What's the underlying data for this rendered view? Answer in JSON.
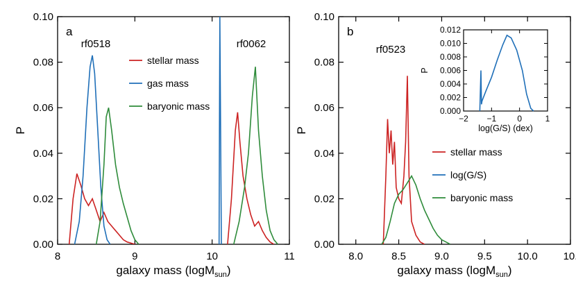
{
  "colors": {
    "stellar": "#cc2222",
    "gas": "#1f6fb8",
    "baryonic": "#2e8b3a",
    "log_gs": "#1f6fb8",
    "axis": "#000000"
  },
  "chart_data": [
    {
      "type": "line",
      "panel_label": "a",
      "xlabel": "galaxy mass (logM",
      "xlabel_sub": "sun",
      "xlabel_end": ")",
      "ylabel": "P",
      "xlim": [
        8,
        11
      ],
      "ylim": [
        0,
        0.1
      ],
      "x_ticks": [
        8,
        9,
        10,
        11
      ],
      "x_tick_labels": [
        "8",
        "9",
        "10",
        "11"
      ],
      "y_ticks": [
        0,
        0.02,
        0.04,
        0.06,
        0.08,
        0.1
      ],
      "y_tick_labels": [
        "0.00",
        "0.02",
        "0.04",
        "0.06",
        "0.08",
        "0.10"
      ],
      "legend_placement": "upper-middle",
      "annotations": [
        "rf0518",
        "rf0062"
      ],
      "legend": [
        "stellar mass",
        "gas mass",
        "baryonic mass"
      ],
      "series": [
        {
          "name": "stellar mass",
          "color_key": "stellar",
          "x": [
            8.15,
            8.2,
            8.25,
            8.3,
            8.35,
            8.4,
            8.45,
            8.5,
            8.55,
            8.6,
            8.65,
            8.7,
            8.75,
            8.8,
            8.85,
            8.9,
            9.0
          ],
          "y": [
            0,
            0.02,
            0.031,
            0.026,
            0.02,
            0.017,
            0.02,
            0.015,
            0.01,
            0.014,
            0.01,
            0.008,
            0.006,
            0.004,
            0.002,
            0.001,
            0
          ]
        },
        {
          "name": "stellar mass",
          "color_key": "stellar",
          "x": [
            10.2,
            10.25,
            10.3,
            10.33,
            10.36,
            10.4,
            10.45,
            10.5,
            10.55,
            10.6,
            10.65,
            10.7,
            10.75,
            10.8
          ],
          "y": [
            0,
            0.02,
            0.05,
            0.058,
            0.045,
            0.03,
            0.02,
            0.013,
            0.008,
            0.01,
            0.006,
            0.003,
            0.001,
            0
          ]
        },
        {
          "name": "gas mass",
          "color_key": "gas",
          "x": [
            8.22,
            8.28,
            8.33,
            8.38,
            8.42,
            8.45,
            8.48,
            8.52,
            8.56,
            8.6,
            8.64,
            8.68
          ],
          "y": [
            0,
            0.01,
            0.03,
            0.06,
            0.078,
            0.083,
            0.075,
            0.05,
            0.025,
            0.008,
            0.002,
            0
          ]
        },
        {
          "name": "gas mass",
          "color_key": "gas",
          "x": [
            10.09,
            10.095,
            10.1,
            10.11,
            10.12
          ],
          "y": [
            0,
            0.05,
            0.1,
            0.05,
            0
          ]
        },
        {
          "name": "baryonic mass",
          "color_key": "baryonic",
          "x": [
            8.5,
            8.55,
            8.6,
            8.63,
            8.66,
            8.7,
            8.75,
            8.8,
            8.85,
            8.9,
            8.95,
            9.0,
            9.05
          ],
          "y": [
            0,
            0.01,
            0.035,
            0.056,
            0.06,
            0.05,
            0.035,
            0.025,
            0.018,
            0.012,
            0.006,
            0.002,
            0
          ]
        },
        {
          "name": "baryonic mass",
          "color_key": "baryonic",
          "x": [
            10.28,
            10.35,
            10.42,
            10.47,
            10.52,
            10.56,
            10.6,
            10.65,
            10.7,
            10.75,
            10.8,
            10.85
          ],
          "y": [
            0,
            0.01,
            0.025,
            0.04,
            0.065,
            0.078,
            0.05,
            0.03,
            0.015,
            0.006,
            0.002,
            0
          ]
        }
      ]
    },
    {
      "type": "line",
      "panel_label": "b",
      "xlabel": "galaxy mass (logM",
      "xlabel_sub": "sun",
      "xlabel_end": ")",
      "ylabel": "P",
      "xlim": [
        7.8,
        10.5
      ],
      "ylim": [
        0,
        0.1
      ],
      "x_ticks": [
        8.0,
        8.5,
        9.0,
        9.5,
        10.0,
        10.5
      ],
      "x_tick_labels": [
        "8.0",
        "8.5",
        "9.0",
        "9.5",
        "10.0",
        "10."
      ],
      "y_ticks": [
        0,
        0.02,
        0.04,
        0.06,
        0.08,
        0.1
      ],
      "y_tick_labels": [
        "0.00",
        "0.02",
        "0.04",
        "0.06",
        "0.08",
        "0.10"
      ],
      "legend_placement": "middle-right",
      "annotations": [
        "rf0523"
      ],
      "legend": [
        "stellar mass",
        "log(G/S)",
        "baryonic mass"
      ],
      "series": [
        {
          "name": "stellar mass",
          "color_key": "stellar",
          "x": [
            8.32,
            8.35,
            8.37,
            8.39,
            8.41,
            8.43,
            8.45,
            8.47,
            8.5,
            8.53,
            8.56,
            8.58,
            8.6,
            8.62,
            8.65,
            8.7,
            8.75,
            8.8
          ],
          "y": [
            0,
            0.03,
            0.055,
            0.04,
            0.05,
            0.035,
            0.045,
            0.025,
            0.02,
            0.018,
            0.03,
            0.045,
            0.074,
            0.03,
            0.01,
            0.004,
            0.001,
            0
          ]
        },
        {
          "name": "baryonic mass",
          "color_key": "baryonic",
          "x": [
            8.3,
            8.35,
            8.4,
            8.45,
            8.5,
            8.55,
            8.6,
            8.65,
            8.7,
            8.75,
            8.8,
            8.85,
            8.9,
            8.95,
            9.0,
            9.05,
            9.1
          ],
          "y": [
            0,
            0.003,
            0.01,
            0.018,
            0.022,
            0.024,
            0.027,
            0.03,
            0.026,
            0.02,
            0.015,
            0.011,
            0.007,
            0.004,
            0.002,
            0.001,
            0
          ]
        }
      ],
      "inset": {
        "type": "line",
        "xlabel": "log(G/S) (dex)",
        "ylabel": "P",
        "xlim": [
          -2,
          1
        ],
        "ylim": [
          0,
          0.012
        ],
        "x_ticks": [
          -2,
          -1,
          0,
          1
        ],
        "x_tick_labels": [
          "−2",
          "−1",
          "0",
          "1"
        ],
        "y_ticks": [
          0,
          0.002,
          0.004,
          0.006,
          0.008,
          0.01,
          0.012
        ],
        "y_tick_labels": [
          "0.000",
          "0.002",
          "0.004",
          "0.006",
          "0.008",
          "0.010",
          "0.012"
        ],
        "series": [
          {
            "name": "log(G/S)",
            "color_key": "log_gs",
            "x": [
              -1.42,
              -1.4,
              -1.38,
              -1.36,
              -1.34,
              -1.2,
              -1.0,
              -0.8,
              -0.6,
              -0.45,
              -0.3,
              -0.1,
              0.1,
              0.25,
              0.4,
              0.5
            ],
            "y": [
              0,
              0.003,
              0.006,
              0.001,
              0.0015,
              0.003,
              0.005,
              0.0075,
              0.0098,
              0.0112,
              0.0108,
              0.009,
              0.006,
              0.0025,
              0.0004,
              0
            ]
          }
        ]
      }
    }
  ]
}
